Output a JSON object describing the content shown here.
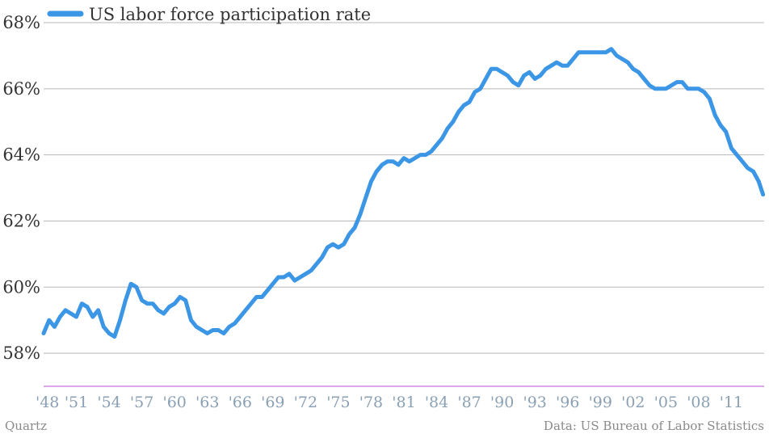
{
  "chart_data": {
    "type": "line",
    "title": "",
    "xlabel": "",
    "ylabel": "",
    "series": [
      {
        "name": "US labor force participation rate",
        "color": "#3c96e6",
        "points": [
          [
            1948.0,
            58.6
          ],
          [
            1948.5,
            59.0
          ],
          [
            1949.0,
            58.8
          ],
          [
            1949.5,
            59.1
          ],
          [
            1950.0,
            59.3
          ],
          [
            1950.5,
            59.2
          ],
          [
            1951.0,
            59.1
          ],
          [
            1951.5,
            59.5
          ],
          [
            1952.0,
            59.4
          ],
          [
            1952.5,
            59.1
          ],
          [
            1953.0,
            59.3
          ],
          [
            1953.5,
            58.8
          ],
          [
            1954.0,
            58.6
          ],
          [
            1954.5,
            58.5
          ],
          [
            1955.0,
            59.0
          ],
          [
            1955.5,
            59.6
          ],
          [
            1956.0,
            60.1
          ],
          [
            1956.5,
            60.0
          ],
          [
            1957.0,
            59.6
          ],
          [
            1957.5,
            59.5
          ],
          [
            1958.0,
            59.5
          ],
          [
            1958.5,
            59.3
          ],
          [
            1959.0,
            59.2
          ],
          [
            1959.5,
            59.4
          ],
          [
            1960.0,
            59.5
          ],
          [
            1960.5,
            59.7
          ],
          [
            1961.0,
            59.6
          ],
          [
            1961.5,
            59.0
          ],
          [
            1962.0,
            58.8
          ],
          [
            1962.5,
            58.7
          ],
          [
            1963.0,
            58.6
          ],
          [
            1963.5,
            58.7
          ],
          [
            1964.0,
            58.7
          ],
          [
            1964.5,
            58.6
          ],
          [
            1965.0,
            58.8
          ],
          [
            1965.5,
            58.9
          ],
          [
            1966.0,
            59.1
          ],
          [
            1966.5,
            59.3
          ],
          [
            1967.0,
            59.5
          ],
          [
            1967.5,
            59.7
          ],
          [
            1968.0,
            59.7
          ],
          [
            1968.5,
            59.9
          ],
          [
            1969.0,
            60.1
          ],
          [
            1969.5,
            60.3
          ],
          [
            1970.0,
            60.3
          ],
          [
            1970.5,
            60.4
          ],
          [
            1971.0,
            60.2
          ],
          [
            1971.5,
            60.3
          ],
          [
            1972.0,
            60.4
          ],
          [
            1972.5,
            60.5
          ],
          [
            1973.0,
            60.7
          ],
          [
            1973.5,
            60.9
          ],
          [
            1974.0,
            61.2
          ],
          [
            1974.5,
            61.3
          ],
          [
            1975.0,
            61.2
          ],
          [
            1975.5,
            61.3
          ],
          [
            1976.0,
            61.6
          ],
          [
            1976.5,
            61.8
          ],
          [
            1977.0,
            62.2
          ],
          [
            1977.5,
            62.7
          ],
          [
            1978.0,
            63.2
          ],
          [
            1978.5,
            63.5
          ],
          [
            1979.0,
            63.7
          ],
          [
            1979.5,
            63.8
          ],
          [
            1980.0,
            63.8
          ],
          [
            1980.5,
            63.7
          ],
          [
            1981.0,
            63.9
          ],
          [
            1981.5,
            63.8
          ],
          [
            1982.0,
            63.9
          ],
          [
            1982.5,
            64.0
          ],
          [
            1983.0,
            64.0
          ],
          [
            1983.5,
            64.1
          ],
          [
            1984.0,
            64.3
          ],
          [
            1984.5,
            64.5
          ],
          [
            1985.0,
            64.8
          ],
          [
            1985.5,
            65.0
          ],
          [
            1986.0,
            65.3
          ],
          [
            1986.5,
            65.5
          ],
          [
            1987.0,
            65.6
          ],
          [
            1987.5,
            65.9
          ],
          [
            1988.0,
            66.0
          ],
          [
            1988.5,
            66.3
          ],
          [
            1989.0,
            66.6
          ],
          [
            1989.5,
            66.6
          ],
          [
            1990.0,
            66.5
          ],
          [
            1990.5,
            66.4
          ],
          [
            1991.0,
            66.2
          ],
          [
            1991.5,
            66.1
          ],
          [
            1992.0,
            66.4
          ],
          [
            1992.5,
            66.5
          ],
          [
            1993.0,
            66.3
          ],
          [
            1993.5,
            66.4
          ],
          [
            1994.0,
            66.6
          ],
          [
            1994.5,
            66.7
          ],
          [
            1995.0,
            66.8
          ],
          [
            1995.5,
            66.7
          ],
          [
            1996.0,
            66.7
          ],
          [
            1996.5,
            66.9
          ],
          [
            1997.0,
            67.1
          ],
          [
            1997.5,
            67.1
          ],
          [
            1998.0,
            67.1
          ],
          [
            1998.5,
            67.1
          ],
          [
            1999.0,
            67.1
          ],
          [
            1999.5,
            67.1
          ],
          [
            2000.0,
            67.2
          ],
          [
            2000.5,
            67.0
          ],
          [
            2001.0,
            66.9
          ],
          [
            2001.5,
            66.8
          ],
          [
            2002.0,
            66.6
          ],
          [
            2002.5,
            66.5
          ],
          [
            2003.0,
            66.3
          ],
          [
            2003.5,
            66.1
          ],
          [
            2004.0,
            66.0
          ],
          [
            2004.5,
            66.0
          ],
          [
            2005.0,
            66.0
          ],
          [
            2005.5,
            66.1
          ],
          [
            2006.0,
            66.2
          ],
          [
            2006.5,
            66.2
          ],
          [
            2007.0,
            66.0
          ],
          [
            2007.5,
            66.0
          ],
          [
            2008.0,
            66.0
          ],
          [
            2008.5,
            65.9
          ],
          [
            2009.0,
            65.7
          ],
          [
            2009.5,
            65.2
          ],
          [
            2010.0,
            64.9
          ],
          [
            2010.5,
            64.7
          ],
          [
            2011.0,
            64.2
          ],
          [
            2011.5,
            64.0
          ],
          [
            2012.0,
            63.8
          ],
          [
            2012.5,
            63.6
          ],
          [
            2013.0,
            63.5
          ],
          [
            2013.5,
            63.2
          ],
          [
            2013.9,
            62.8
          ]
        ]
      }
    ],
    "xlim": [
      1948,
      2014
    ],
    "ylim": [
      57.0,
      68.0
    ],
    "y_ticks": [
      58,
      60,
      62,
      64,
      66,
      68
    ],
    "y_tick_labels": [
      "58%",
      "60%",
      "62%",
      "64%",
      "66%",
      "68%"
    ],
    "x_ticks": [
      1948,
      1951,
      1954,
      1957,
      1960,
      1963,
      1966,
      1969,
      1972,
      1975,
      1978,
      1981,
      1984,
      1987,
      1990,
      1993,
      1996,
      1999,
      2002,
      2005,
      2008,
      2011
    ],
    "x_tick_labels": [
      "'48",
      "'51",
      "'54",
      "'57",
      "'60",
      "'63",
      "'66",
      "'69",
      "'72",
      "'75",
      "'78",
      "'81",
      "'84",
      "'87",
      "'90",
      "'93",
      "'96",
      "'99",
      "'02",
      "'05",
      "'08",
      "'11"
    ],
    "grid": true,
    "legend_position": "top-left"
  },
  "footer": {
    "source_left": "Quartz",
    "source_right": "Data: US Bureau of Labor Statistics"
  }
}
